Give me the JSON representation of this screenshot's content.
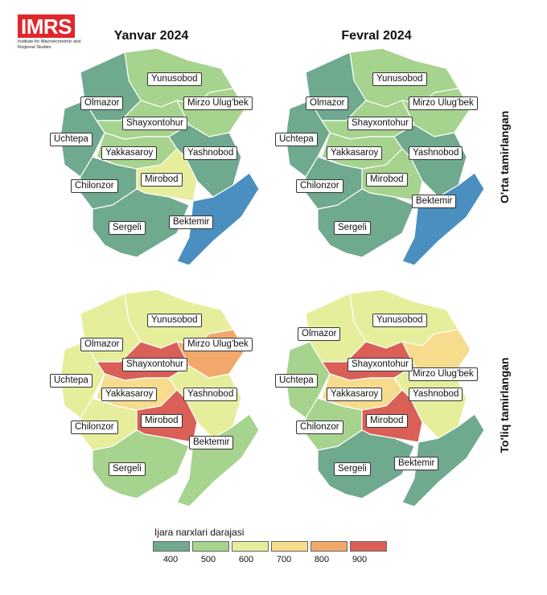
{
  "logo": {
    "name": "IMRS",
    "subtitle": "Institute for Macroeconomic and Regional Studies"
  },
  "columns": [
    "Yanvar 2024",
    "Fevral 2024"
  ],
  "rows": [
    "O'rta tamirlangan",
    "To'liq tamirlangan"
  ],
  "legend": {
    "title": "Ijara narxlari darajasi",
    "items": [
      {
        "value": "400",
        "color": "#6fa98e"
      },
      {
        "value": "500",
        "color": "#a6d38d"
      },
      {
        "value": "600",
        "color": "#e6ee9c"
      },
      {
        "value": "700",
        "color": "#f6dc8c"
      },
      {
        "value": "800",
        "color": "#f2a86b"
      },
      {
        "value": "900",
        "color": "#d95f57"
      }
    ]
  },
  "maps": [
    {
      "id": "orta-yanvar",
      "districts": {
        "Yunusobod": 500,
        "Olmazor": 400,
        "Mirzo Ulug'bek": 500,
        "Shayxontohur": 500,
        "Uchtepa": 400,
        "Yakkasaroy": 500,
        "Yashnobod": 400,
        "Chilonzor": 400,
        "Mirobod": 600,
        "Bektemir": 300,
        "Sergeli": 400
      }
    },
    {
      "id": "orta-fevral",
      "districts": {
        "Yunusobod": 500,
        "Olmazor": 400,
        "Mirzo Ulug'bek": 500,
        "Shayxontohur": 500,
        "Uchtepa": 400,
        "Yakkasaroy": 500,
        "Yashnobod": 400,
        "Chilonzor": 400,
        "Mirobod": 500,
        "Bektemir": 300,
        "Sergeli": 400
      }
    },
    {
      "id": "toliq-yanvar",
      "districts": {
        "Yunusobod": 600,
        "Olmazor": 600,
        "Mirzo Ulug'bek": 800,
        "Shayxontohur": 900,
        "Uchtepa": 600,
        "Yakkasaroy": 700,
        "Yashnobod": 600,
        "Chilonzor": 600,
        "Mirobod": 900,
        "Bektemir": 500,
        "Sergeli": 500
      }
    },
    {
      "id": "toliq-fevral",
      "districts": {
        "Yunusobod": 600,
        "Olmazor": 600,
        "Mirzo Ulug'bek": 700,
        "Shayxontohur": 900,
        "Uchtepa": 500,
        "Yakkasaroy": 700,
        "Yashnobod": 600,
        "Chilonzor": 500,
        "Mirobod": 900,
        "Bektemir": 400,
        "Sergeli": 400
      }
    }
  ],
  "scale_colors": {
    "300": "#4b8fc0",
    "400": "#6fa98e",
    "500": "#a6d38d",
    "600": "#e6ee9c",
    "700": "#f6dc8c",
    "800": "#f2a86b",
    "900": "#d95f57"
  }
}
